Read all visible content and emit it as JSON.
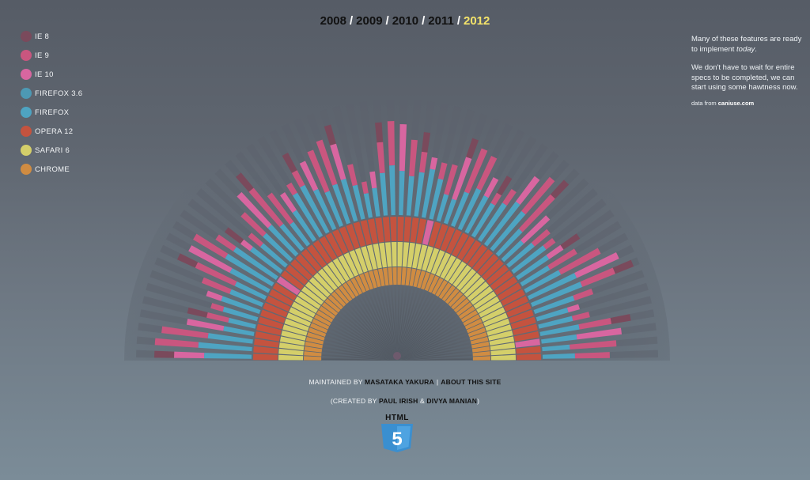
{
  "legend": [
    {
      "label": "IE 8",
      "color": "#7a4a5c"
    },
    {
      "label": "IE 9",
      "color": "#c9567f"
    },
    {
      "label": "IE 10",
      "color": "#d866a0"
    },
    {
      "label": "FIREFOX 3.6",
      "color": "#4d99b4"
    },
    {
      "label": "FIREFOX",
      "color": "#4ea4c2"
    },
    {
      "label": "OPERA 12",
      "color": "#c4533f"
    },
    {
      "label": "SAFARI 6",
      "color": "#d4cf6a"
    },
    {
      "label": "CHROME",
      "color": "#d08c42"
    }
  ],
  "years": [
    "2008",
    "2009",
    "2010",
    "2011",
    "2012"
  ],
  "active_year": "2012",
  "info": {
    "p1_a": "Many of these features are ready to implement ",
    "p1_em": "today",
    "p1_b": ".",
    "p2": "We don't have to wait for entire specs to be completed, we can start using some hawtness now.",
    "data_from": "data from ",
    "data_link": "caniuse.com"
  },
  "footer": {
    "maintained_by": "MAINTAINED BY ",
    "maintainer": "MASATAKA YAKURA",
    "about": "ABOUT THIS SITE",
    "created_by": "(CREATED BY ",
    "author1": "PAUL IRISH",
    "amp": " & ",
    "author2": "DIVYA MANIAN",
    "close": ")"
  },
  "badge": {
    "word": "HTML",
    "number": "5"
  },
  "colors": {
    "ie8": "#7a4a5c",
    "ie9": "#c9567f",
    "ie10": "#d866a0",
    "firefox36": "#4d99b4",
    "firefox": "#4ea4c2",
    "opera": "#c4533f",
    "safari": "#d4cf6a",
    "chrome": "#d08c42",
    "empty": "#5c636d",
    "badge": "#3a8fd0"
  }
}
